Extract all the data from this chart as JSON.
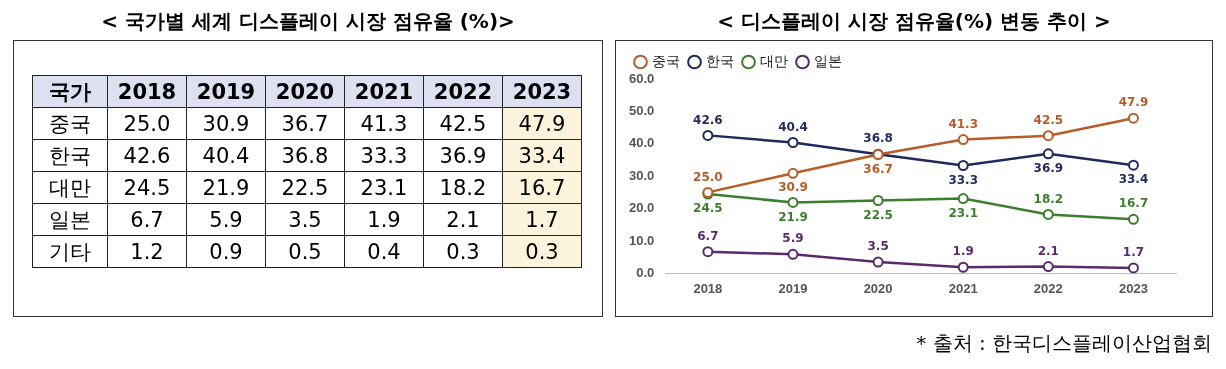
{
  "chart_data": [
    {
      "type": "heatmap",
      "title": "< 국가별 세계 디스플레이 시장 점유율 (%)>",
      "ylabel": "국가",
      "categories": [
        "2018",
        "2019",
        "2020",
        "2021",
        "2022",
        "2023"
      ],
      "y_categories": [
        "중국",
        "한국",
        "대만",
        "일본",
        "기타"
      ],
      "cells": [
        [
          "25.0",
          "30.9",
          "36.7",
          "41.3",
          "42.5",
          "47.9"
        ],
        [
          "42.6",
          "40.4",
          "36.8",
          "33.3",
          "36.9",
          "33.4"
        ],
        [
          "24.5",
          "21.9",
          "22.5",
          "23.1",
          "18.2",
          "16.7"
        ],
        [
          "6.7",
          "5.9",
          "3.5",
          "1.9",
          "2.1",
          "1.7"
        ],
        [
          "1.2",
          "0.9",
          "0.5",
          "0.4",
          "0.3",
          "0.3"
        ]
      ],
      "colors": [
        "#ffffff",
        "#ffffff",
        "#ffffff",
        "#ffffff",
        "#ffffff",
        "#fcf3dc"
      ]
    },
    {
      "type": "line",
      "title": "< 디스플레이 시장 점유율(%) 변동 추이 >",
      "categories": [
        "2018",
        "2019",
        "2020",
        "2021",
        "2022",
        "2023"
      ],
      "series": [
        {
          "name": "중국",
          "color": "#b85c28",
          "values": [
            25.0,
            30.9,
            36.7,
            41.3,
            42.5,
            47.9
          ],
          "value_labels": [
            "25.0",
            "30.9",
            "36.7",
            "41.3",
            "42.5",
            "47.9"
          ]
        },
        {
          "name": "한국",
          "color": "#1f2a5c",
          "values": [
            42.6,
            40.4,
            36.8,
            33.3,
            36.9,
            33.4
          ],
          "value_labels": [
            "42.6",
            "40.4",
            "36.8",
            "33.3",
            "36.9",
            "33.4"
          ]
        },
        {
          "name": "대만",
          "color": "#3d7d2e",
          "values": [
            24.5,
            21.9,
            22.5,
            23.1,
            18.2,
            16.7
          ],
          "value_labels": [
            "24.5",
            "21.9",
            "22.5",
            "23.1",
            "18.2",
            "16.7"
          ]
        },
        {
          "name": "일본",
          "color": "#5a2a6c",
          "values": [
            6.7,
            5.9,
            3.5,
            1.9,
            2.1,
            1.7
          ],
          "value_labels": [
            "6.7",
            "5.9",
            "3.5",
            "1.9",
            "2.1",
            "1.7"
          ]
        }
      ],
      "ylim": [
        0,
        60
      ],
      "yticks": [
        {
          "value": 0,
          "label": "0.0"
        },
        {
          "value": 10,
          "label": "10.0"
        },
        {
          "value": 20,
          "label": "20.0"
        },
        {
          "value": 30,
          "label": "30.0"
        },
        {
          "value": 40,
          "label": "40.0"
        },
        {
          "value": 50,
          "label": "50.0"
        },
        {
          "value": 60,
          "label": "60.0"
        }
      ],
      "grid": false,
      "legend": "top",
      "marker": "circle",
      "line_style": "solid",
      "annotations": [
        "* 출처 : 한국디스플레이산업협회"
      ]
    }
  ]
}
